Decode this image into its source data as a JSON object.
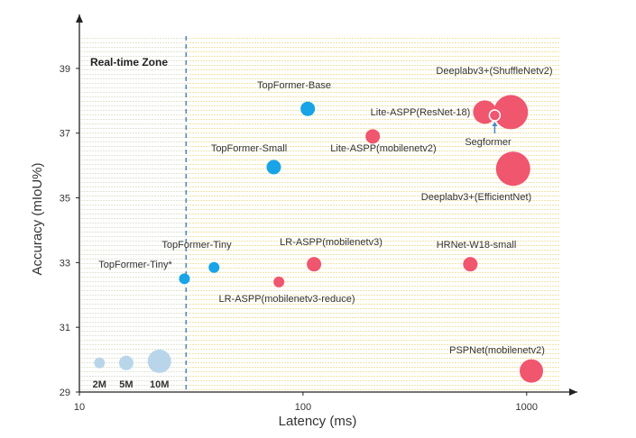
{
  "chart_data": {
    "type": "scatter",
    "title": "",
    "xlabel": "Latency (ms)",
    "ylabel": "Accuracy (mIoU%)",
    "x_scale": "log",
    "xlim": [
      10,
      1400
    ],
    "ylim": [
      29,
      40
    ],
    "x_ticks": [
      10,
      100,
      1000
    ],
    "y_ticks": [
      29,
      31,
      33,
      35,
      37,
      39
    ],
    "grid": false,
    "zone_label": "Real-time Zone",
    "zone_max_latency": 30,
    "colors": {
      "topformer": "#18a4e6",
      "other": "#f0566e",
      "legend": "#b9d5ea",
      "zone_divider": "#4a86c5",
      "zone_hatch": "#e0e5d4",
      "rest_hatch": "#f0e3a6"
    },
    "points": [
      {
        "label": "TopFormer-Base",
        "x": 105,
        "y": 37.75,
        "size": "medium",
        "group": "topformer"
      },
      {
        "label": "TopFormer-Small",
        "x": 74,
        "y": 35.95,
        "size": "medium",
        "group": "topformer"
      },
      {
        "label": "TopFormer-Tiny",
        "x": 40,
        "y": 32.85,
        "size": "small",
        "group": "topformer"
      },
      {
        "label": "TopFormer-Tiny*",
        "x": 29.5,
        "y": 32.5,
        "size": "small",
        "group": "topformer"
      },
      {
        "label": "Lite-ASPP(ResNet-18)",
        "x": 650,
        "y": 37.65,
        "size": "large",
        "group": "other"
      },
      {
        "label": "Lite-ASPP(mobilenetv2)",
        "x": 205,
        "y": 36.9,
        "size": "medium",
        "group": "other"
      },
      {
        "label": "Deeplabv3+(ShuffleNetv2)",
        "x": 850,
        "y": 37.65,
        "size": "xlarge",
        "group": "other"
      },
      {
        "label": "Segformer",
        "x": 720,
        "y": 37.55,
        "size": "small",
        "group": "other"
      },
      {
        "label": "Deeplabv3+(EfficientNet)",
        "x": 870,
        "y": 35.9,
        "size": "xlarge",
        "group": "other"
      },
      {
        "label": "LR-ASPP(mobilenetv3)",
        "x": 112,
        "y": 32.95,
        "size": "medium",
        "group": "other"
      },
      {
        "label": "LR-ASPP(mobilenetv3-reduce)",
        "x": 78,
        "y": 32.4,
        "size": "small",
        "group": "other"
      },
      {
        "label": "HRNet-W18-small",
        "x": 560,
        "y": 32.95,
        "size": "medium",
        "group": "other"
      },
      {
        "label": "PSPNet(mobilenetv2)",
        "x": 1050,
        "y": 29.65,
        "size": "large",
        "group": "other"
      }
    ],
    "size_legend": [
      {
        "label": "2M",
        "x": 12.3,
        "y": 29.9,
        "size": "small"
      },
      {
        "label": "5M",
        "x": 16.2,
        "y": 29.9,
        "size": "medium"
      },
      {
        "label": "10M",
        "x": 22.8,
        "y": 29.95,
        "size": "large"
      }
    ]
  }
}
